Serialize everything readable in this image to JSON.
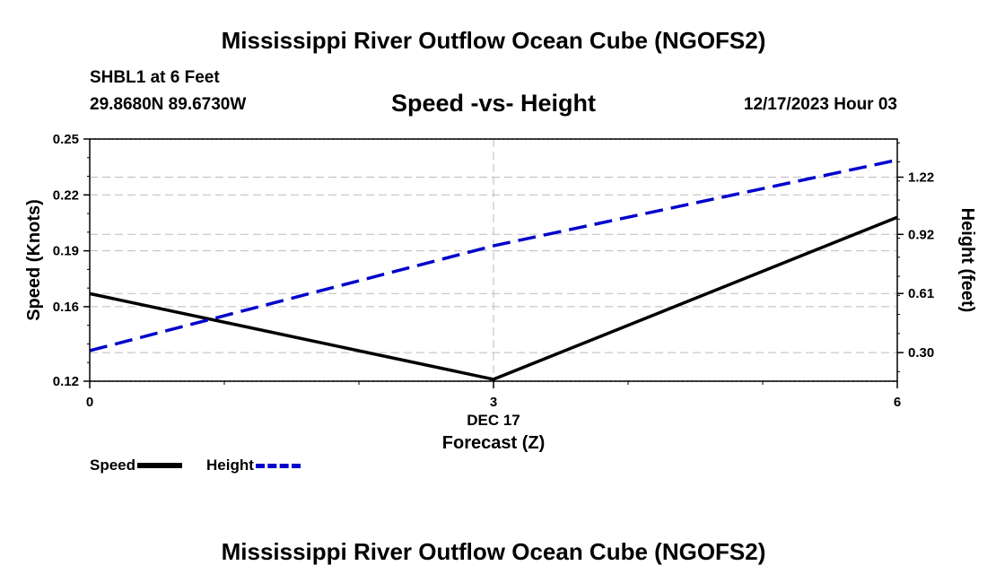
{
  "page": {
    "title": "Mississippi River Outflow Ocean Cube (NGOFS2)",
    "station": "SHBL1 at 6 Feet",
    "coordinates": "29.8680N  89.6730W",
    "datetime": "12/17/2023 Hour 03",
    "footer_title": "Mississippi River Outflow Ocean Cube (NGOFS2)"
  },
  "chart_data": {
    "type": "line",
    "title": "Speed -vs- Height",
    "xlabel": "Forecast (Z)",
    "x_date_label": "DEC 17",
    "xlim": [
      0,
      6
    ],
    "x_ticks": [
      0,
      3,
      6
    ],
    "y_left": {
      "label": "Speed (Knots)",
      "lim": [
        0.12,
        0.25
      ],
      "ticks": [
        "0.12",
        "0.16",
        "0.19",
        "0.22",
        "0.25"
      ],
      "tick_values": [
        0.12,
        0.16,
        0.19,
        0.22,
        0.25
      ]
    },
    "y_right": {
      "label": "Height (feet)",
      "lim": [
        0.15,
        1.42
      ],
      "ticks": [
        "0.30",
        "0.61",
        "0.92",
        "1.22"
      ],
      "tick_values": [
        0.3,
        0.61,
        0.92,
        1.22
      ]
    },
    "grid": true,
    "series": [
      {
        "name": "Speed",
        "axis": "left",
        "color": "#000000",
        "style": "solid",
        "x": [
          0,
          3,
          6
        ],
        "values": [
          0.167,
          0.121,
          0.208
        ]
      },
      {
        "name": "Height",
        "axis": "right",
        "color": "#0000cc",
        "style": "dashed",
        "x": [
          0,
          3,
          6
        ],
        "values": [
          0.31,
          0.86,
          1.31
        ]
      }
    ],
    "legend": {
      "position": "bottom-left",
      "entries": [
        "Speed",
        "Height"
      ]
    }
  }
}
